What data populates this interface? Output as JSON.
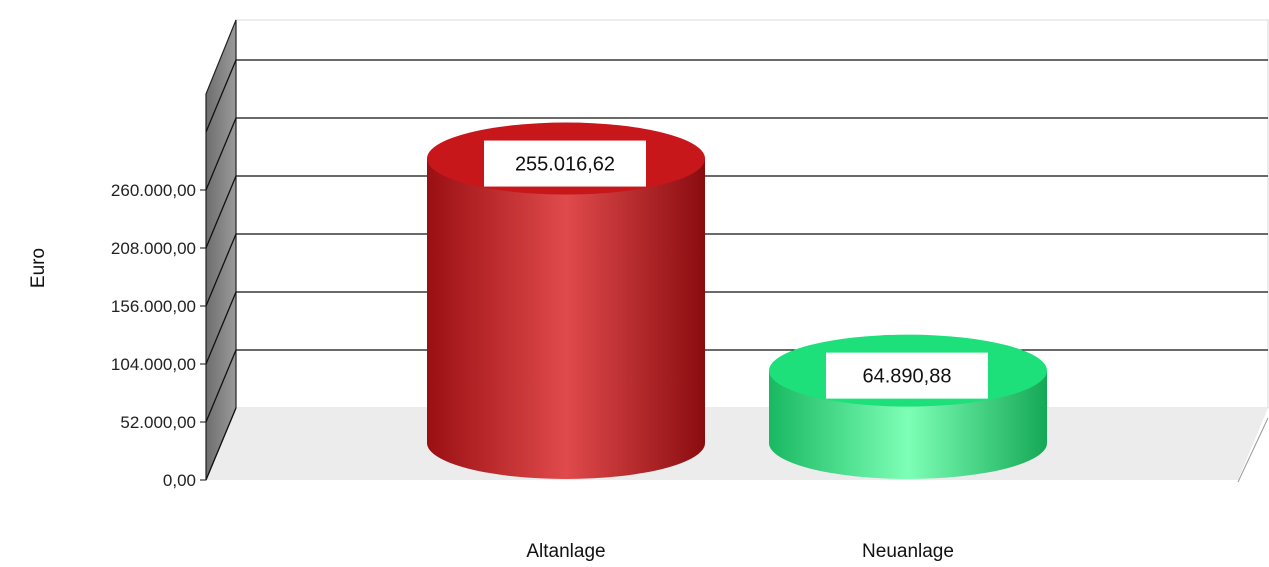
{
  "chart_data": {
    "type": "bar",
    "style": "3d-cylinder",
    "categories": [
      "Altanlage",
      "Neuanlage"
    ],
    "values": [
      255016.62,
      64890.88
    ],
    "value_labels": [
      "255.016,62",
      "64.890,88"
    ],
    "colors": [
      "#c8171b",
      "#1ee07a"
    ],
    "ylabel": "Euro",
    "xlabel": "",
    "yticks": [
      0,
      52000,
      104000,
      156000,
      208000,
      260000
    ],
    "ytick_labels": [
      "0,00",
      "52.000,00",
      "104.000,00",
      "156.000,00",
      "208.000,00",
      "260.000,00"
    ],
    "ylim": [
      0,
      312000
    ],
    "grid": true,
    "legend": "none"
  }
}
